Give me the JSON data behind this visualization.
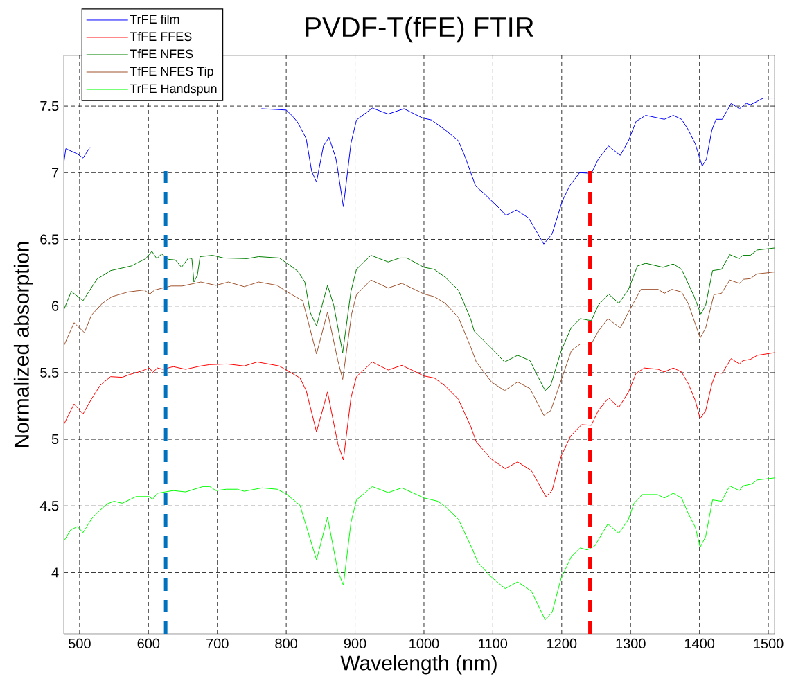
{
  "chart_data": {
    "type": "line",
    "title": "PVDF-T(fFE) FTIR",
    "xlabel": "Wavelength (nm)",
    "ylabel": "Normalized absorption",
    "xlim": [
      477,
      1509
    ],
    "ylim": [
      3.54,
      7.88
    ],
    "xticks": [
      500,
      600,
      700,
      800,
      900,
      1000,
      1100,
      1200,
      1300,
      1400,
      1500
    ],
    "yticks": [
      4,
      4.5,
      5,
      5.5,
      6,
      6.5,
      7,
      7.5
    ],
    "grid": true,
    "legend": "top left",
    "marker": "none",
    "line_style": "solid",
    "ref_lines": [
      {
        "axis": "x",
        "value": 625,
        "color": "#0072bd",
        "line_style": "dashed"
      },
      {
        "axis": "x",
        "value": 1241,
        "color": "#ff0000",
        "line_style": "dashed"
      }
    ],
    "series": [
      {
        "name": "TrFE film",
        "color": "#0000ff",
        "x": [
          477,
          480,
          497,
          505,
          515,
          640,
          764,
          800,
          810,
          817,
          829,
          837,
          844,
          854,
          862,
          872,
          874,
          883,
          894,
          902,
          925,
          948,
          971,
          998,
          1011,
          1031,
          1050,
          1060,
          1075,
          1088,
          1109,
          1119,
          1134,
          1152,
          1174,
          1186,
          1189,
          1201,
          1212,
          1226,
          1243,
          1253,
          1268,
          1285,
          1297,
          1308,
          1322,
          1349,
          1362,
          1374,
          1384,
          1394,
          1404,
          1410,
          1418,
          1424,
          1433,
          1446,
          1458,
          1468,
          1474,
          1493,
          1509
        ],
        "values": [
          7.07,
          7.18,
          7.14,
          7.11,
          7.19,
          null,
          7.48,
          7.47,
          7.42,
          7.375,
          7.255,
          7.01,
          6.93,
          7.2,
          7.265,
          7.11,
          7.05,
          6.745,
          7.22,
          7.395,
          7.485,
          7.44,
          7.48,
          7.41,
          7.395,
          7.32,
          7.24,
          7.115,
          6.9,
          6.84,
          6.735,
          6.68,
          6.72,
          6.66,
          6.465,
          6.54,
          6.59,
          6.79,
          6.905,
          7.0,
          6.995,
          7.1,
          7.2,
          7.13,
          7.24,
          7.385,
          7.43,
          7.4,
          7.43,
          7.4,
          7.32,
          7.215,
          7.05,
          7.1,
          7.32,
          7.4,
          7.4,
          7.52,
          7.48,
          7.52,
          7.51,
          7.56,
          7.56
        ]
      },
      {
        "name": "TfFE FFES",
        "color": "#ff0000",
        "x": [
          477,
          492,
          505,
          517,
          530,
          545,
          562,
          572,
          586,
          602,
          606,
          613,
          621,
          636,
          654,
          676,
          689,
          714,
          739,
          758,
          790,
          800,
          820,
          829,
          844,
          860,
          875,
          883,
          894,
          902,
          925,
          948,
          968,
          1000,
          1015,
          1031,
          1050,
          1068,
          1076,
          1098,
          1118,
          1136,
          1156,
          1177,
          1186,
          1199,
          1213,
          1229,
          1243,
          1253,
          1268,
          1283,
          1297,
          1308,
          1320,
          1340,
          1349,
          1362,
          1374,
          1384,
          1394,
          1401,
          1409,
          1418,
          1424,
          1433,
          1446,
          1458,
          1463,
          1474,
          1484,
          1509
        ],
        "values": [
          5.11,
          5.265,
          5.19,
          5.3,
          5.405,
          5.47,
          5.465,
          5.485,
          5.505,
          5.535,
          5.5,
          5.535,
          5.525,
          5.545,
          5.525,
          5.55,
          5.56,
          5.565,
          5.55,
          5.58,
          5.55,
          5.52,
          5.46,
          5.365,
          5.055,
          5.355,
          4.965,
          4.845,
          5.31,
          5.47,
          5.58,
          5.52,
          5.555,
          5.475,
          5.46,
          5.4,
          5.3,
          5.095,
          4.98,
          4.85,
          4.78,
          4.83,
          4.765,
          4.57,
          4.615,
          4.87,
          5.025,
          5.11,
          5.105,
          5.215,
          5.31,
          5.24,
          5.355,
          5.495,
          5.535,
          5.525,
          5.505,
          5.535,
          5.505,
          5.415,
          5.29,
          5.155,
          5.215,
          5.415,
          5.5,
          5.495,
          5.605,
          5.565,
          5.59,
          5.6,
          5.63,
          5.65
        ]
      },
      {
        "name": "TfFE NFES",
        "color": "#008000",
        "x": [
          477,
          488,
          505,
          525,
          545,
          575,
          596,
          605,
          612,
          619,
          629,
          639,
          648,
          658,
          663,
          666,
          671,
          675,
          693,
          709,
          743,
          760,
          790,
          804,
          817,
          827,
          835,
          844,
          852,
          860,
          869,
          882,
          894,
          902,
          923,
          948,
          965,
          975,
          1000,
          1015,
          1031,
          1050,
          1068,
          1073,
          1088,
          1117,
          1136,
          1154,
          1163,
          1176,
          1184,
          1199,
          1214,
          1227,
          1243,
          1253,
          1268,
          1283,
          1297,
          1310,
          1322,
          1347,
          1362,
          1374,
          1392,
          1402,
          1409,
          1419,
          1432,
          1444,
          1458,
          1463,
          1474,
          1484,
          1509
        ],
        "values": [
          5.97,
          6.11,
          6.04,
          6.2,
          6.265,
          6.3,
          6.355,
          6.41,
          6.355,
          6.39,
          6.35,
          6.345,
          6.29,
          6.36,
          6.355,
          6.18,
          6.23,
          6.37,
          6.38,
          6.36,
          6.355,
          6.37,
          6.36,
          6.31,
          6.26,
          6.18,
          5.95,
          5.85,
          6.005,
          6.155,
          6.005,
          5.65,
          6.11,
          6.275,
          6.38,
          6.33,
          6.36,
          6.36,
          6.29,
          6.275,
          6.215,
          6.12,
          5.9,
          5.81,
          5.735,
          5.58,
          5.63,
          5.59,
          5.495,
          5.365,
          5.405,
          5.66,
          5.84,
          5.905,
          5.89,
          6.005,
          6.09,
          6.02,
          6.125,
          6.3,
          6.32,
          6.29,
          6.315,
          6.275,
          6.075,
          5.94,
          6.005,
          6.265,
          6.275,
          6.385,
          6.355,
          6.38,
          6.38,
          6.42,
          6.435
        ]
      },
      {
        "name": "TfFE NFES Tip",
        "color": "#a0522d",
        "x": [
          477,
          492,
          507,
          517,
          533,
          547,
          570,
          594,
          602,
          609,
          633,
          649,
          676,
          698,
          716,
          739,
          760,
          787,
          800,
          817,
          824,
          844,
          860,
          875,
          882,
          895,
          902,
          923,
          948,
          968,
          1000,
          1015,
          1031,
          1050,
          1068,
          1076,
          1098,
          1117,
          1136,
          1154,
          1174,
          1184,
          1202,
          1214,
          1227,
          1243,
          1253,
          1267,
          1285,
          1297,
          1315,
          1340,
          1349,
          1360,
          1374,
          1384,
          1401,
          1409,
          1421,
          1432,
          1444,
          1458,
          1464,
          1474,
          1483,
          1509
        ],
        "values": [
          5.7,
          5.875,
          5.8,
          5.93,
          6.02,
          6.07,
          6.105,
          6.12,
          6.09,
          6.12,
          6.15,
          6.15,
          6.18,
          6.155,
          6.18,
          6.145,
          6.18,
          6.155,
          6.11,
          6.06,
          6.04,
          5.64,
          5.955,
          5.59,
          5.45,
          5.94,
          6.085,
          6.195,
          6.135,
          6.17,
          6.09,
          6.07,
          6.02,
          5.915,
          5.69,
          5.58,
          5.43,
          5.365,
          5.43,
          5.38,
          5.18,
          5.215,
          5.485,
          5.665,
          5.715,
          5.715,
          5.81,
          5.905,
          5.835,
          5.955,
          6.125,
          6.125,
          6.095,
          6.125,
          6.105,
          6.015,
          5.76,
          5.835,
          6.085,
          6.095,
          6.195,
          6.17,
          6.2,
          6.205,
          6.24,
          6.255
        ]
      },
      {
        "name": "TrFE Handspun",
        "color": "#00ff00",
        "x": [
          477,
          487,
          497,
          505,
          517,
          525,
          540,
          550,
          562,
          582,
          601,
          606,
          613,
          636,
          654,
          679,
          689,
          698,
          713,
          729,
          739,
          765,
          787,
          800,
          820,
          844,
          860,
          875,
          883,
          894,
          902,
          925,
          948,
          968,
          1000,
          1020,
          1031,
          1050,
          1070,
          1078,
          1098,
          1118,
          1136,
          1156,
          1176,
          1186,
          1199,
          1214,
          1227,
          1237,
          1248,
          1267,
          1283,
          1297,
          1305,
          1317,
          1339,
          1349,
          1362,
          1374,
          1384,
          1394,
          1401,
          1409,
          1419,
          1432,
          1444,
          1458,
          1463,
          1476,
          1484,
          1509
        ],
        "values": [
          4.235,
          4.32,
          4.345,
          4.3,
          4.4,
          4.445,
          4.515,
          4.535,
          4.52,
          4.57,
          4.57,
          4.55,
          4.595,
          4.615,
          4.605,
          4.645,
          4.645,
          4.615,
          4.625,
          4.625,
          4.61,
          4.635,
          4.625,
          4.59,
          4.505,
          4.095,
          4.415,
          4.01,
          3.905,
          4.375,
          4.545,
          4.645,
          4.6,
          4.635,
          4.56,
          4.535,
          4.495,
          4.4,
          4.18,
          4.08,
          3.965,
          3.88,
          3.93,
          3.86,
          3.645,
          3.7,
          3.955,
          4.12,
          4.185,
          4.17,
          4.2,
          4.365,
          4.295,
          4.4,
          4.52,
          4.585,
          4.585,
          4.56,
          4.595,
          4.56,
          4.44,
          4.34,
          4.19,
          4.27,
          4.545,
          4.535,
          4.65,
          4.615,
          4.65,
          4.665,
          4.695,
          4.71
        ]
      }
    ]
  }
}
